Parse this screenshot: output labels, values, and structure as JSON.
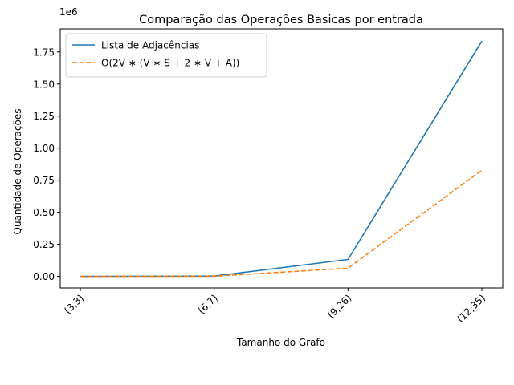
{
  "chart_data": {
    "type": "line",
    "title": "Comparação das Operações Basicas por entrada",
    "xlabel": "Tamanho do Grafo",
    "ylabel": "Quantidade de Operações",
    "categories": [
      "(3,3)",
      "(6,7)",
      "(9,26)",
      "(12,35)"
    ],
    "offset_text": "1e6",
    "ylim": [
      -90000,
      1930000
    ],
    "yticks": [
      0,
      250000,
      500000,
      750000,
      1000000,
      1250000,
      1500000,
      1750000
    ],
    "ytick_labels": [
      "0.00",
      "0.25",
      "0.50",
      "0.75",
      "1.00",
      "1.25",
      "1.50",
      "1.75"
    ],
    "grid": false,
    "legend_position": "top-left",
    "series": [
      {
        "name": "Lista de Adjacências",
        "values": [
          300,
          2500,
          132000,
          1835000
        ],
        "color": "#1f77b4",
        "style": "solid"
      },
      {
        "name": "O(2V ∗ (V ∗ S + 2 ∗ V + A))",
        "values": [
          150,
          1300,
          64000,
          828000
        ],
        "color": "#ff7f0e",
        "style": "dashed"
      }
    ]
  }
}
